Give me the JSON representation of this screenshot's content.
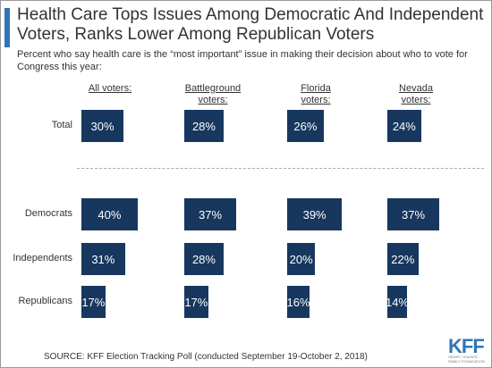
{
  "chart_data": {
    "type": "bar",
    "title": "Health Care Tops Issues Among Democratic And Independent Voters, Ranks Lower Among Republican Voters",
    "subtitle": "Percent who say health care is the “most important” issue in making their decision about who to vote for Congress this year:",
    "categories": [
      "Total",
      "Democrats",
      "Independents",
      "Republicans"
    ],
    "series": [
      {
        "name": "All voters:",
        "color": "#17375e",
        "values": [
          30,
          40,
          31,
          17
        ],
        "value_labels": [
          "30%",
          "40%",
          "31%",
          "17%"
        ]
      },
      {
        "name": "Battleground voters:",
        "color": "#17375e",
        "values": [
          28,
          37,
          28,
          17
        ],
        "value_labels": [
          "28%",
          "37%",
          "28%",
          "17%"
        ]
      },
      {
        "name": "Florida voters:",
        "color": "#17375e",
        "values": [
          26,
          39,
          20,
          16
        ],
        "value_labels": [
          "26%",
          "39%",
          "20%",
          "16%"
        ]
      },
      {
        "name": "Nevada voters:",
        "color": "#17375e",
        "values": [
          24,
          37,
          22,
          14
        ],
        "value_labels": [
          "24%",
          "37%",
          "22%",
          "14%"
        ]
      }
    ],
    "xlim": [
      0,
      50
    ],
    "source": "SOURCE: KFF Election Tracking Poll (conducted September 19-October 2, 2018)",
    "logo": {
      "name": "KFF",
      "tagline": "HENRY J KAISER FAMILY FOUNDATION"
    }
  }
}
